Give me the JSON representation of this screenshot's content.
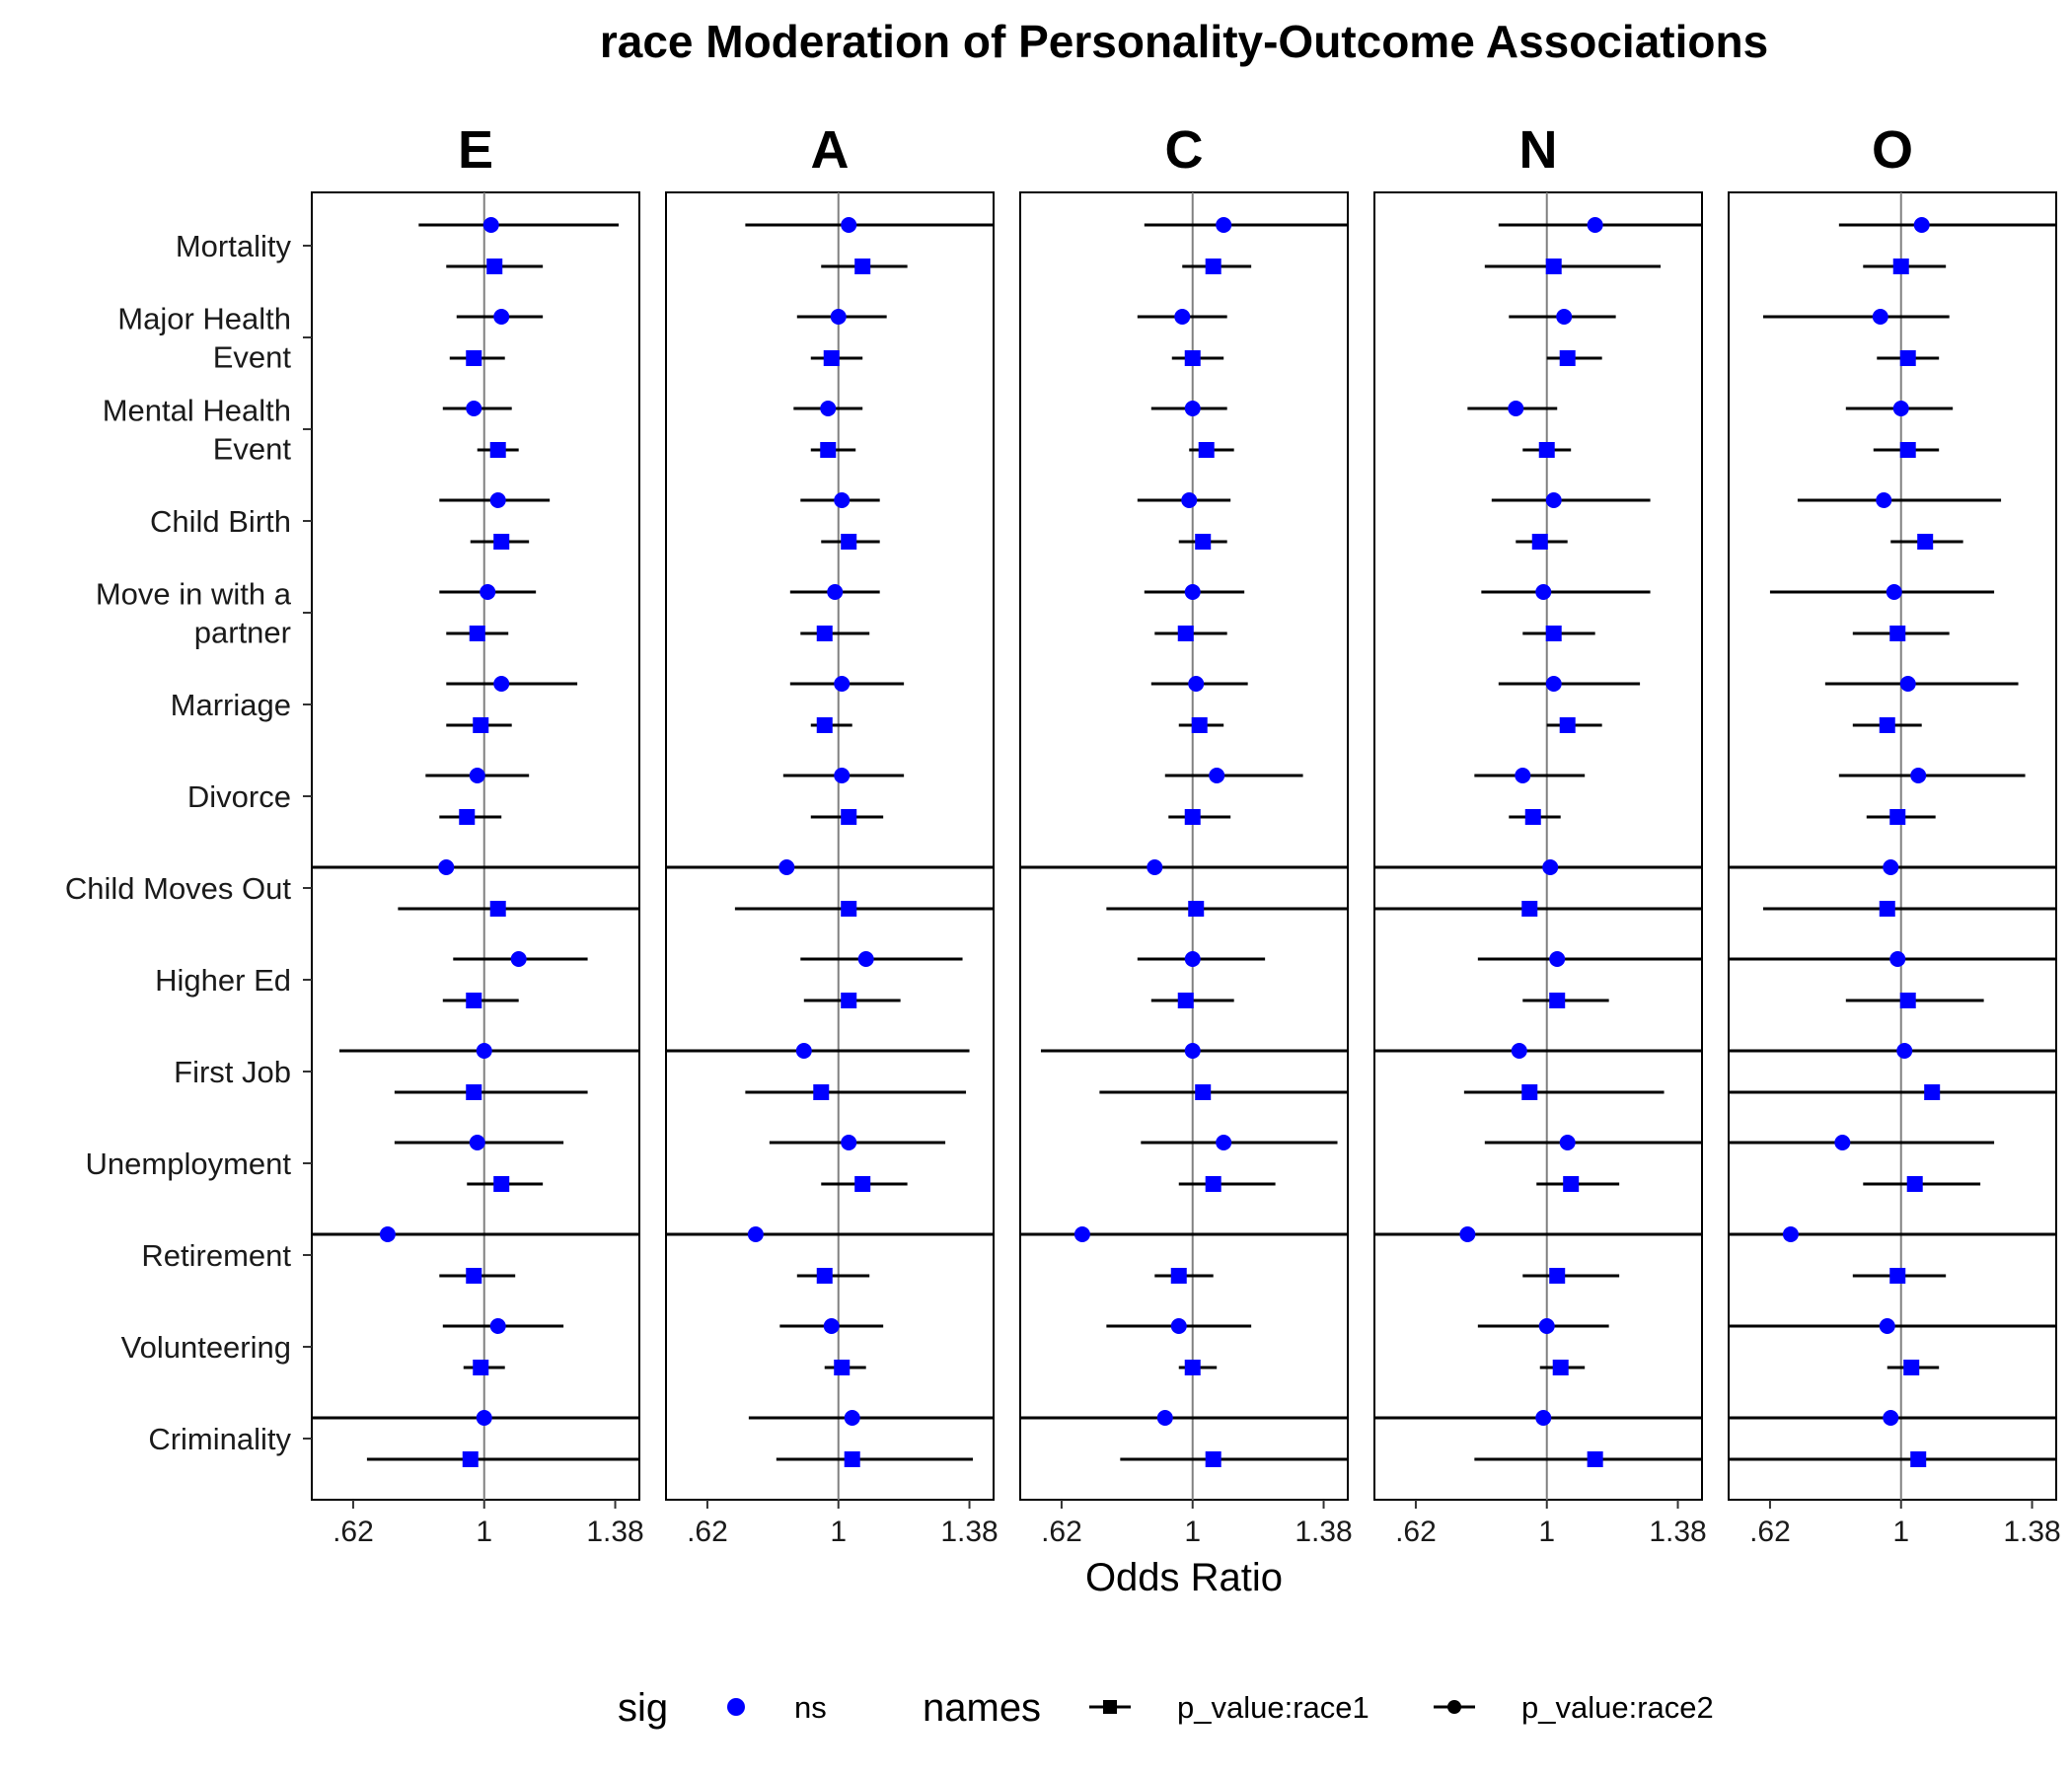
{
  "chart_data": {
    "type": "forest-plot",
    "title": "race Moderation of Personality-Outcome Associations",
    "xlabel": "Odds Ratio",
    "ylabel": "",
    "xlim": [
      0.5,
      1.45
    ],
    "xticks": [
      0.62,
      1,
      1.38
    ],
    "xtick_labels": [
      ".62",
      "1",
      "1.38"
    ],
    "reference_line": 1,
    "grid": false,
    "facets": [
      "E",
      "A",
      "C",
      "N",
      "O"
    ],
    "outcomes": [
      "Mortality",
      "Major Health Event",
      "Mental Health Event",
      "Child Birth",
      "Move in with a partner",
      "Marriage",
      "Divorce",
      "Child Moves Out",
      "Higher Ed",
      "First Job",
      "Unemployment",
      "Retirement",
      "Volunteering",
      "Criminality"
    ],
    "outcome_labels": [
      [
        "Mortality"
      ],
      [
        "Major Health",
        "Event"
      ],
      [
        "Mental Health",
        "Event"
      ],
      [
        "Child Birth"
      ],
      [
        "Move in with a",
        "partner"
      ],
      [
        "Marriage"
      ],
      [
        "Divorce"
      ],
      [
        "Child Moves Out"
      ],
      [
        "Higher Ed"
      ],
      [
        "First Job"
      ],
      [
        "Unemployment"
      ],
      [
        "Retirement"
      ],
      [
        "Volunteering"
      ],
      [
        "Criminality"
      ]
    ],
    "series": [
      {
        "name": "p_value:race2",
        "shape": "circle",
        "data": {
          "E": [
            [
              1.02,
              0.81,
              1.39
            ],
            [
              1.05,
              0.92,
              1.17
            ],
            [
              0.97,
              0.88,
              1.08
            ],
            [
              1.04,
              0.87,
              1.19
            ],
            [
              1.01,
              0.87,
              1.15
            ],
            [
              1.05,
              0.89,
              1.27
            ],
            [
              0.98,
              0.83,
              1.13
            ],
            [
              0.89,
              0.5,
              1.45
            ],
            [
              1.1,
              0.91,
              1.3
            ],
            [
              1,
              0.58,
              1.45
            ],
            [
              0.98,
              0.74,
              1.23
            ],
            [
              0.72,
              0.5,
              1.45
            ],
            [
              1.04,
              0.88,
              1.23
            ],
            [
              1,
              0.5,
              1.45
            ]
          ],
          "A": [
            [
              1.03,
              0.73,
              1.45
            ],
            [
              1,
              0.88,
              1.14
            ],
            [
              0.97,
              0.87,
              1.07
            ],
            [
              1.01,
              0.89,
              1.12
            ],
            [
              0.99,
              0.86,
              1.12
            ],
            [
              1.01,
              0.86,
              1.19
            ],
            [
              1.01,
              0.84,
              1.19
            ],
            [
              0.85,
              0.5,
              1.45
            ],
            [
              1.08,
              0.89,
              1.36
            ],
            [
              0.9,
              0.5,
              1.38
            ],
            [
              1.03,
              0.8,
              1.31
            ],
            [
              0.76,
              0.5,
              1.45
            ],
            [
              0.98,
              0.83,
              1.13
            ],
            [
              1.04,
              0.74,
              1.45
            ]
          ],
          "C": [
            [
              1.09,
              0.86,
              1.45
            ],
            [
              0.97,
              0.84,
              1.1
            ],
            [
              1,
              0.88,
              1.1
            ],
            [
              0.99,
              0.84,
              1.11
            ],
            [
              1,
              0.86,
              1.15
            ],
            [
              1.01,
              0.88,
              1.16
            ],
            [
              1.07,
              0.92,
              1.32
            ],
            [
              0.89,
              0.5,
              1.45
            ],
            [
              1,
              0.84,
              1.21
            ],
            [
              1,
              0.56,
              1.45
            ],
            [
              1.09,
              0.85,
              1.42
            ],
            [
              0.68,
              0.5,
              1.45
            ],
            [
              0.96,
              0.75,
              1.17
            ],
            [
              0.92,
              0.5,
              1.45
            ]
          ],
          "N": [
            [
              1.14,
              0.86,
              1.45
            ],
            [
              1.05,
              0.89,
              1.2
            ],
            [
              0.91,
              0.77,
              1.03
            ],
            [
              1.02,
              0.84,
              1.3
            ],
            [
              0.99,
              0.81,
              1.3
            ],
            [
              1.02,
              0.86,
              1.27
            ],
            [
              0.93,
              0.79,
              1.11
            ],
            [
              1.01,
              0.5,
              1.45
            ],
            [
              1.03,
              0.8,
              1.45
            ],
            [
              0.92,
              0.5,
              1.45
            ],
            [
              1.06,
              0.82,
              1.45
            ],
            [
              0.77,
              0.5,
              1.45
            ],
            [
              1,
              0.8,
              1.18
            ],
            [
              0.99,
              0.5,
              1.45
            ]
          ],
          "O": [
            [
              1.06,
              0.82,
              1.45
            ],
            [
              0.94,
              0.6,
              1.14
            ],
            [
              1,
              0.84,
              1.15
            ],
            [
              0.95,
              0.7,
              1.29
            ],
            [
              0.98,
              0.62,
              1.27
            ],
            [
              1.02,
              0.78,
              1.34
            ],
            [
              1.05,
              0.82,
              1.36
            ],
            [
              0.97,
              0.5,
              1.45
            ],
            [
              0.99,
              0.5,
              1.45
            ],
            [
              1.01,
              0.5,
              1.45
            ],
            [
              0.83,
              0.5,
              1.27
            ],
            [
              0.68,
              0.5,
              1.45
            ],
            [
              0.96,
              0.5,
              1.45
            ],
            [
              0.97,
              0.5,
              1.45
            ]
          ]
        }
      },
      {
        "name": "p_value:race1",
        "shape": "square",
        "data": {
          "E": [
            [
              1.03,
              0.89,
              1.17
            ],
            [
              0.97,
              0.9,
              1.06
            ],
            [
              1.04,
              0.98,
              1.1
            ],
            [
              1.05,
              0.96,
              1.13
            ],
            [
              0.98,
              0.89,
              1.07
            ],
            [
              0.99,
              0.89,
              1.08
            ],
            [
              0.95,
              0.87,
              1.05
            ],
            [
              1.04,
              0.75,
              1.45
            ],
            [
              0.97,
              0.88,
              1.1
            ],
            [
              0.97,
              0.74,
              1.3
            ],
            [
              1.05,
              0.95,
              1.17
            ],
            [
              0.97,
              0.87,
              1.09
            ],
            [
              0.99,
              0.94,
              1.06
            ],
            [
              0.96,
              0.66,
              1.45
            ]
          ],
          "A": [
            [
              1.07,
              0.95,
              1.2
            ],
            [
              0.98,
              0.92,
              1.07
            ],
            [
              0.97,
              0.92,
              1.05
            ],
            [
              1.03,
              0.95,
              1.12
            ],
            [
              0.96,
              0.89,
              1.09
            ],
            [
              0.96,
              0.92,
              1.04
            ],
            [
              1.03,
              0.92,
              1.13
            ],
            [
              1.03,
              0.7,
              1.45
            ],
            [
              1.03,
              0.9,
              1.18
            ],
            [
              0.95,
              0.73,
              1.37
            ],
            [
              1.07,
              0.95,
              1.2
            ],
            [
              0.96,
              0.88,
              1.09
            ],
            [
              1.01,
              0.96,
              1.08
            ],
            [
              1.04,
              0.82,
              1.39
            ]
          ],
          "C": [
            [
              1.06,
              0.97,
              1.17
            ],
            [
              1,
              0.94,
              1.09
            ],
            [
              1.04,
              0.99,
              1.12
            ],
            [
              1.03,
              0.96,
              1.1
            ],
            [
              0.98,
              0.89,
              1.1
            ],
            [
              1.02,
              0.96,
              1.09
            ],
            [
              1,
              0.93,
              1.11
            ],
            [
              1.01,
              0.75,
              1.45
            ],
            [
              0.98,
              0.88,
              1.12
            ],
            [
              1.03,
              0.73,
              1.45
            ],
            [
              1.06,
              0.96,
              1.24
            ],
            [
              0.96,
              0.89,
              1.06
            ],
            [
              1,
              0.96,
              1.07
            ],
            [
              1.06,
              0.79,
              1.45
            ]
          ],
          "N": [
            [
              1.02,
              0.82,
              1.33
            ],
            [
              1.06,
              1,
              1.16
            ],
            [
              1,
              0.93,
              1.07
            ],
            [
              0.98,
              0.91,
              1.06
            ],
            [
              1.02,
              0.93,
              1.14
            ],
            [
              1.06,
              1,
              1.16
            ],
            [
              0.96,
              0.89,
              1.04
            ],
            [
              0.95,
              0.5,
              1.45
            ],
            [
              1.03,
              0.93,
              1.18
            ],
            [
              0.95,
              0.76,
              1.34
            ],
            [
              1.07,
              0.97,
              1.21
            ],
            [
              1.03,
              0.93,
              1.21
            ],
            [
              1.04,
              0.98,
              1.11
            ],
            [
              1.14,
              0.79,
              1.45
            ]
          ],
          "O": [
            [
              1,
              0.89,
              1.13
            ],
            [
              1.02,
              0.93,
              1.11
            ],
            [
              1.02,
              0.92,
              1.11
            ],
            [
              1.07,
              0.97,
              1.18
            ],
            [
              0.99,
              0.86,
              1.14
            ],
            [
              0.96,
              0.86,
              1.06
            ],
            [
              0.99,
              0.9,
              1.1
            ],
            [
              0.96,
              0.6,
              1.45
            ],
            [
              1.02,
              0.84,
              1.24
            ],
            [
              1.09,
              0.5,
              1.45
            ],
            [
              1.04,
              0.89,
              1.23
            ],
            [
              0.99,
              0.86,
              1.13
            ],
            [
              1.03,
              0.96,
              1.11
            ],
            [
              1.05,
              0.5,
              1.45
            ]
          ]
        }
      }
    ],
    "legend": {
      "position": "bottom",
      "sig_title": "sig",
      "sig_entries": [
        {
          "label": "ns",
          "color": "#0000ff"
        }
      ],
      "names_title": "names",
      "names_entries": [
        {
          "label": "p_value:race1",
          "shape": "square"
        },
        {
          "label": "p_value:race2",
          "shape": "circle"
        }
      ]
    },
    "colors": {
      "point": "#0000ff",
      "errorbar": "#000000",
      "refline": "#808080",
      "panel_border": "#000000"
    }
  }
}
